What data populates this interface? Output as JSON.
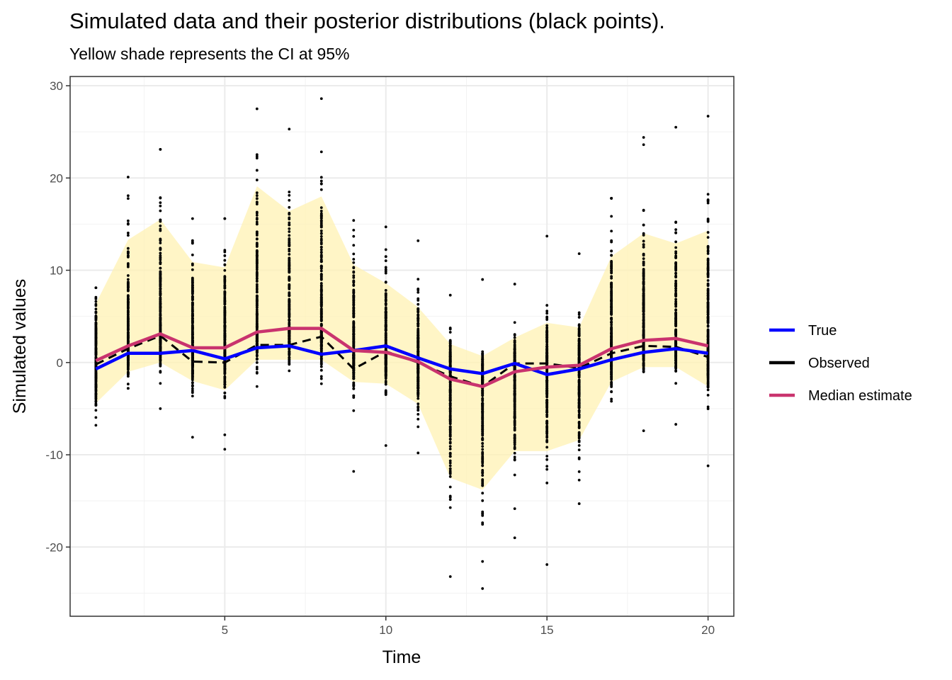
{
  "chart_data": {
    "type": "line",
    "title": "Simulated data and their posterior distributions (black points).",
    "subtitle": "Yellow shade represents the CI at 95%",
    "xlabel": "Time",
    "ylabel": "Simulated values",
    "xlim": [
      0.2,
      20.8
    ],
    "ylim": [
      -27.5,
      31.0
    ],
    "x_ticks": [
      5,
      10,
      15,
      20
    ],
    "x_tick_labels": [
      "5",
      "10",
      "15",
      "20"
    ],
    "y_ticks": [
      -20,
      -10,
      0,
      10,
      20,
      30
    ],
    "y_tick_labels": [
      "-20",
      "-10",
      "0",
      "10",
      "20",
      "30"
    ],
    "grid": true,
    "legend_position": "right",
    "x": [
      1,
      2,
      3,
      4,
      5,
      6,
      7,
      8,
      9,
      10,
      11,
      12,
      13,
      14,
      15,
      16,
      17,
      18,
      19,
      20
    ],
    "series": [
      {
        "name": "True",
        "color": "#0000ff",
        "style": "solid",
        "values": [
          -0.7,
          1.0,
          1.0,
          1.3,
          0.4,
          1.6,
          1.8,
          0.9,
          1.3,
          1.8,
          0.5,
          -0.7,
          -1.2,
          -0.1,
          -1.3,
          -0.7,
          0.3,
          1.1,
          1.5,
          1.0
        ]
      },
      {
        "name": "Observed",
        "color": "#000000",
        "style": "dashed",
        "values": [
          -0.2,
          1.5,
          2.9,
          0.1,
          0.0,
          1.9,
          1.9,
          2.8,
          -0.7,
          1.2,
          0.0,
          -1.5,
          -2.6,
          -0.1,
          -0.1,
          -0.6,
          1.0,
          1.8,
          1.7,
          0.6
        ]
      },
      {
        "name": "Median estimate",
        "color": "#c9336e",
        "style": "solid",
        "values": [
          0.2,
          1.8,
          3.1,
          1.6,
          1.6,
          3.3,
          3.7,
          3.7,
          1.3,
          1.1,
          0.1,
          -1.8,
          -2.6,
          -1.0,
          -0.5,
          -0.3,
          1.5,
          2.4,
          2.6,
          1.8
        ]
      }
    ],
    "ci_band": {
      "color": "#fff2b3",
      "lower": [
        -4.4,
        -1.0,
        0.0,
        -2.0,
        -3.0,
        0.3,
        0.3,
        0.3,
        -2.1,
        -2.3,
        -4.5,
        -12.5,
        -13.8,
        -9.6,
        -9.6,
        -8.4,
        -2.1,
        -0.5,
        -0.5,
        -2.6
      ],
      "upper": [
        6.4,
        13.3,
        15.5,
        10.9,
        10.3,
        19.1,
        16.4,
        18.0,
        10.6,
        8.6,
        6.0,
        2.0,
        0.7,
        2.7,
        4.3,
        3.8,
        11.5,
        14.0,
        12.9,
        14.3
      ]
    },
    "posterior_points": {
      "color": "#000000",
      "description_min": [
        -6.8,
        -2.8,
        -5.0,
        -8.1,
        -9.4,
        -2.6,
        -0.9,
        -2.3,
        -11.8,
        -9.0,
        -9.8,
        -23.2,
        -24.5,
        -19.0,
        -21.9,
        -15.3,
        -4.2,
        -7.4,
        -6.7,
        -11.2
      ],
      "description_max": [
        8.1,
        20.1,
        23.1,
        15.6,
        15.6,
        27.5,
        25.3,
        28.6,
        15.4,
        14.7,
        13.2,
        7.3,
        9.0,
        8.5,
        13.7,
        11.8,
        17.8,
        24.4,
        25.5,
        26.7
      ]
    }
  }
}
